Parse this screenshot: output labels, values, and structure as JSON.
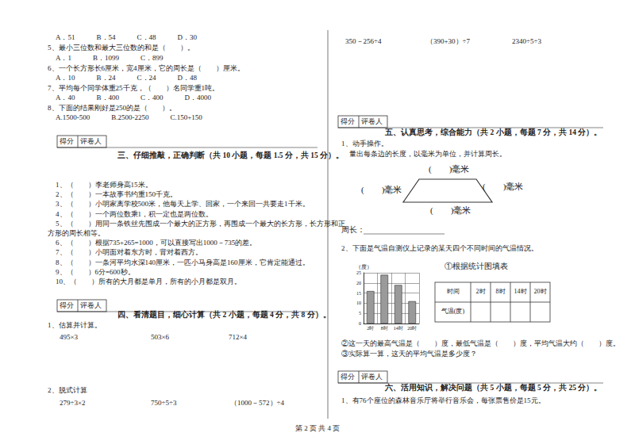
{
  "score_box": [
    "得分",
    "评卷人"
  ],
  "left_top": [
    "A．51　　　B．54　　　C．48　　　D．30",
    "5、最小三位数和最大三位数的和是（　　）。",
    "A．1　　　B．1099　　　C．899",
    "6、一个长方形长6厘米，宽4厘米，它的周长是（　　）厘米。",
    "A．10　　　B．24　　　C．24　　　D．48",
    "7、平均每个同学体重25千克，（　　）名同学重1吨。",
    "A．40　　　B．400　　　C．400　　　D．4000",
    "8、下面的结果刚好是250的是（　　）。",
    "A.1500-500　　　B.2500-2250　　　C.150+150"
  ],
  "section3": {
    "heading": "三、仔细推敲，正确判断（共 10 小题，每题 1.5 分，共 15 分）。",
    "items": [
      [
        "1、（　　）李老师身高15米。"
      ],
      [
        "2、（　　）一本故事书约重150千克。"
      ],
      [
        "3、（　　）小明家离学校500米，他每天上学、回家，一个来回一共要走1千米。"
      ],
      [
        "4、（　　）一个两位数乘1，积一定也是两位数。"
      ],
      [
        "5、（　　）用同一条铁丝先围成一个最大的正方形，再围成一个最大的长方形，长方形和正",
        "方形的周长相等。"
      ],
      [
        "6、（　　）根据735+265=1000，可以直接写出1000－735的差。"
      ],
      [
        "7、（　　）小明面对着东方时，背对着西方。"
      ],
      [
        "8、（　　）一条河平均水深140厘米，一匹小马身高是160厘米，它肯定能通过。"
      ],
      [
        "9、（　　）6分=600秒。"
      ],
      [
        "10、（　　）所有的大月都是单月，所有的小月都是双月。"
      ]
    ]
  },
  "section4": {
    "heading": "四、看清题目，细心计算（共 2 小题，每题 4 分，共 8 分）。",
    "q1": "1、估算并计算。",
    "q1_exprs": [
      "495×3",
      "503×6",
      "712×4"
    ],
    "q2": "2、脱式计算",
    "q2_exprs": [
      "279÷3×2",
      "750÷5÷3",
      "（1000－572）÷4"
    ]
  },
  "right_top_exprs": [
    "350－256÷4",
    "（390+30）÷7",
    "2340÷5÷3"
  ],
  "section5": {
    "heading": "五、认真思考，综合能力（共 2 小题，每题 7 分，共 14 分）。",
    "q1": "1、动手操作。",
    "q1_instruction": "量出每条边的长度，以毫米为单位，并计算周长。",
    "edge_labels": [
      "(　　)毫米",
      "(　　)毫米",
      "(　　)毫米",
      "(　　)毫米"
    ],
    "perimeter": "周长：",
    "q2": "2、下面是气温自测仪上记录的某天四个不同时间的气温情况。",
    "table_title": "①根据统计图填表",
    "table_header": [
      "时间",
      "2时",
      "8时",
      "14时",
      "20时"
    ],
    "table_row_label": "气温(度)",
    "q2_2": "②这一天的最高气温是（　　）度，最低气温是（　　）度，平均气温大约（　　）度。",
    "q2_3": "③实际算一算，这天的平均气温是多少度？"
  },
  "section6": {
    "heading": "六、活用知识，解决问题（共 5 小题，每题 5 分，共 25 分）。",
    "q1": "1、有76个座位的森林音乐厅将举行音乐会，每张票售价是15元。"
  },
  "footer": "第 2 页 共 4 页",
  "chart_data": {
    "type": "bar",
    "y_label": "（度）",
    "categories": [
      "2时",
      "8时",
      "14时",
      "20时"
    ],
    "values": [
      16,
      24,
      19,
      11
    ],
    "color": "#9a9a9a",
    "ylim": [
      0,
      25
    ],
    "yticks": [
      0,
      5,
      10,
      15,
      20,
      25
    ],
    "grid": true
  }
}
